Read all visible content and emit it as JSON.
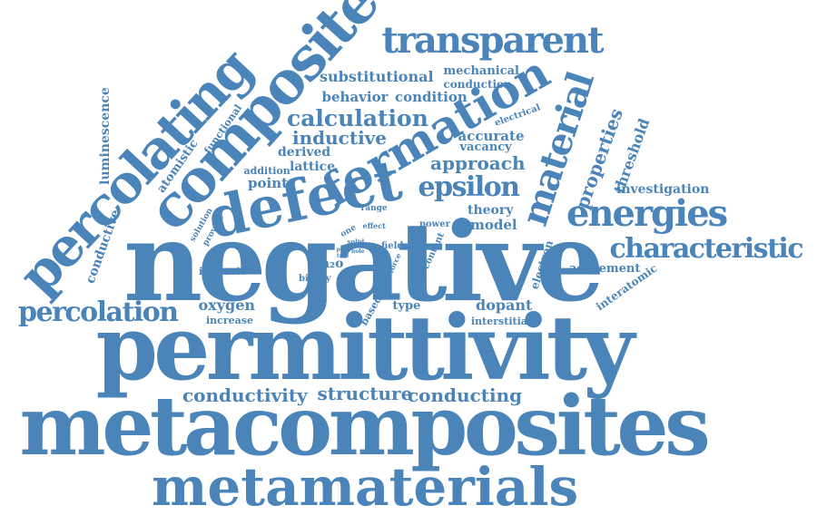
{
  "theme": {
    "word_color": "#4a84b8",
    "background": "#ffffff"
  },
  "words": [
    {
      "id": "w1",
      "text": "negative"
    },
    {
      "id": "w2",
      "text": "permittivity"
    },
    {
      "id": "w3",
      "text": "metacomposites"
    },
    {
      "id": "w4",
      "text": "metamaterials"
    },
    {
      "id": "w5",
      "text": "composite"
    },
    {
      "id": "w6",
      "text": "percolating"
    },
    {
      "id": "w7",
      "text": "defect"
    },
    {
      "id": "w8",
      "text": "formation"
    },
    {
      "id": "w9",
      "text": "transparent"
    },
    {
      "id": "w10",
      "text": "material"
    },
    {
      "id": "w11",
      "text": "energies"
    },
    {
      "id": "w12",
      "text": "characteristic"
    },
    {
      "id": "w13",
      "text": "percolation"
    },
    {
      "id": "w14",
      "text": "epsilon"
    },
    {
      "id": "w15",
      "text": "calculation"
    },
    {
      "id": "w16",
      "text": "properties"
    },
    {
      "id": "w17",
      "text": "threshold"
    },
    {
      "id": "w18",
      "text": "conductivity"
    },
    {
      "id": "w19",
      "text": "structure"
    },
    {
      "id": "w20",
      "text": "conducting"
    },
    {
      "id": "w21",
      "text": "inductive"
    },
    {
      "id": "w22",
      "text": "approach"
    },
    {
      "id": "w23",
      "text": "substitutional"
    },
    {
      "id": "w24",
      "text": "mechanical"
    },
    {
      "id": "w25",
      "text": "conduction"
    },
    {
      "id": "w26",
      "text": "behavior"
    },
    {
      "id": "w27",
      "text": "condition"
    },
    {
      "id": "w28",
      "text": "accurate"
    },
    {
      "id": "w29",
      "text": "vacancy"
    },
    {
      "id": "w30",
      "text": "electrical"
    },
    {
      "id": "w31",
      "text": "derived"
    },
    {
      "id": "w32",
      "text": "lattice"
    },
    {
      "id": "w33",
      "text": "addition"
    },
    {
      "id": "w34",
      "text": "point"
    },
    {
      "id": "w35",
      "text": "luminescence"
    },
    {
      "id": "w36",
      "text": "atomistic"
    },
    {
      "id": "w37",
      "text": "functional"
    },
    {
      "id": "w38",
      "text": "conductive"
    },
    {
      "id": "w39",
      "text": "solution"
    },
    {
      "id": "w40",
      "text": "provide"
    },
    {
      "id": "w41",
      "text": "investigation"
    },
    {
      "id": "w42",
      "text": "theory"
    },
    {
      "id": "w43",
      "text": "model"
    },
    {
      "id": "w44",
      "text": "agreement"
    },
    {
      "id": "w45",
      "text": "electron"
    },
    {
      "id": "w46",
      "text": "interatomic"
    },
    {
      "id": "w47",
      "text": "oxygen"
    },
    {
      "id": "w48",
      "text": "dopant"
    },
    {
      "id": "w49",
      "text": "interstitial"
    },
    {
      "id": "w50",
      "text": "intrinsic"
    },
    {
      "id": "w51",
      "text": "increase"
    },
    {
      "id": "w52",
      "text": "binary"
    },
    {
      "id": "w53",
      "text": "in₂o"
    },
    {
      "id": "w54",
      "text": "type"
    },
    {
      "id": "w55",
      "text": "based"
    },
    {
      "id": "w56",
      "text": "content"
    },
    {
      "id": "w57",
      "text": "power"
    },
    {
      "id": "w58",
      "text": "field"
    },
    {
      "id": "w59",
      "text": "force"
    },
    {
      "id": "w60",
      "text": "range"
    },
    {
      "id": "w61",
      "text": "effect"
    },
    {
      "id": "w62",
      "text": "solid"
    },
    {
      "id": "w63",
      "text": "hole"
    },
    {
      "id": "w64",
      "text": "pose"
    },
    {
      "id": "w65",
      "text": "tree"
    },
    {
      "id": "w66",
      "text": "one"
    }
  ]
}
